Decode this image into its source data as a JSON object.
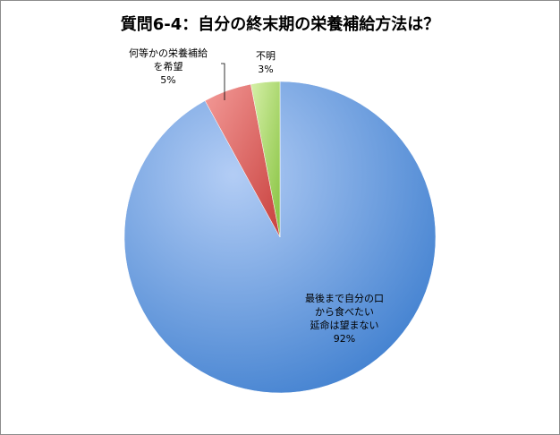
{
  "chart_data": {
    "type": "pie",
    "title": "質問6-4：自分の終末期の栄養補給方法は？",
    "slices": [
      {
        "label_lines": [
          "最後まで自分の口",
          "から食べたい",
          "延命は望まない"
        ],
        "percent_label": "92%",
        "value": 92,
        "color": "#7aa5e6"
      },
      {
        "label_lines": [
          "何等かの栄養補給",
          "を希望"
        ],
        "percent_label": "5%",
        "value": 5,
        "color": "#e8706d"
      },
      {
        "label_lines": [
          "不明"
        ],
        "percent_label": "3%",
        "value": 3,
        "color": "#a8d96a"
      }
    ],
    "legend": "none",
    "data_labels": "category-and-percent"
  }
}
